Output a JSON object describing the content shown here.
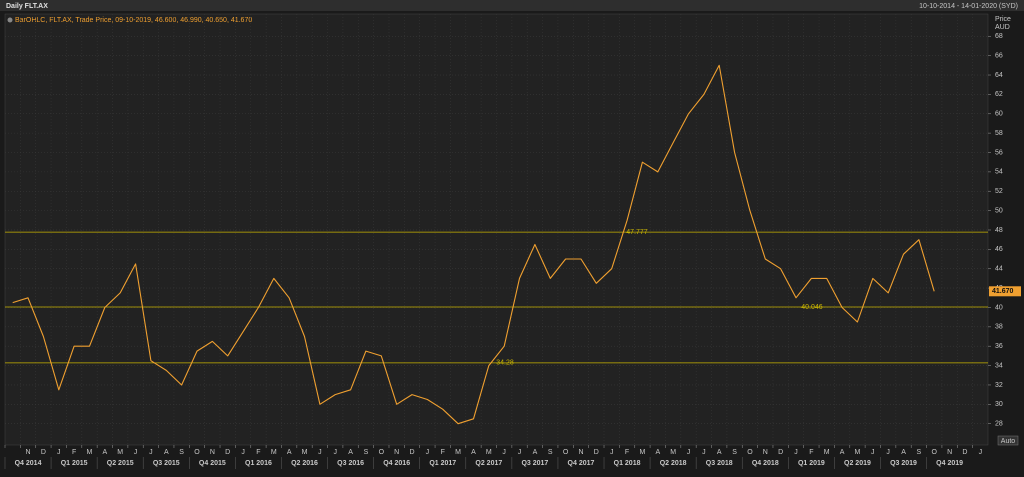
{
  "chart_data": {
    "type": "line",
    "title": "Daily FLT.AX",
    "subtitle": "10-10-2014 - 14-01-2020 (SYD)",
    "y_label": "Price",
    "y_unit": "AUD",
    "auto_button": "Auto",
    "grid": true,
    "categories": [
      null,
      "N",
      "D",
      "J",
      "F",
      "M",
      "A",
      "M",
      "J",
      "J",
      "A",
      "S",
      "O",
      "N",
      "D",
      "J",
      "F",
      "M",
      "A",
      "M",
      "J",
      "J",
      "A",
      "S",
      "O",
      "N",
      "D",
      "J",
      "F",
      "M",
      "A",
      "M",
      "J",
      "J",
      "A",
      "S",
      "O",
      "N",
      "D",
      "J",
      "F",
      "M",
      "A",
      "M",
      "J",
      "J",
      "A",
      "S",
      "O",
      "N",
      "D",
      "J",
      "F",
      "M",
      "A",
      "M",
      "J",
      "J",
      "A",
      "S",
      "O",
      "N",
      "D",
      "J"
    ],
    "quarter_labels": [
      "Q4 2014",
      "Q1 2015",
      "Q2 2015",
      "Q3 2015",
      "Q4 2015",
      "Q1 2016",
      "Q2 2016",
      "Q3 2016",
      "Q4 2016",
      "Q1 2017",
      "Q2 2017",
      "Q3 2017",
      "Q4 2017",
      "Q1 2018",
      "Q2 2018",
      "Q3 2018",
      "Q4 2018",
      "Q1 2019",
      "Q2 2019",
      "Q3 2019",
      "Q4 2019"
    ],
    "series": [
      {
        "name": "BarOHLC, FLT.AX, Trade Price, 09-10-2019, 46.600, 46.990, 40.650, 41.670",
        "color": "#f0a030",
        "values": [
          40.5,
          41,
          37,
          31.5,
          36,
          36,
          40,
          41.5,
          44.5,
          34.5,
          33.5,
          32,
          35.5,
          36.5,
          35,
          37.5,
          40,
          43,
          41,
          37,
          30,
          31,
          31.5,
          35.5,
          35,
          30,
          31,
          30.5,
          29.5,
          28,
          28.5,
          34,
          36,
          43,
          46.5,
          43,
          45,
          45,
          42.5,
          44,
          49,
          55,
          54,
          57,
          60,
          62,
          65,
          56,
          50,
          45,
          44,
          41,
          43,
          43,
          40,
          38.5,
          43,
          41.5,
          45.5,
          47,
          41.67,
          null,
          null,
          null
        ]
      }
    ],
    "hlines": [
      47.777,
      40.046,
      34.28
    ],
    "hline_color": "#c8b400",
    "last_price": {
      "value": 41.67,
      "label": "41.670"
    },
    "ylim": [
      25.8,
      70.3
    ],
    "yticks": [
      28,
      30,
      32,
      34,
      36,
      38,
      40,
      42,
      44,
      46,
      48,
      50,
      52,
      54,
      56,
      58,
      60,
      62,
      64,
      66,
      68
    ]
  }
}
